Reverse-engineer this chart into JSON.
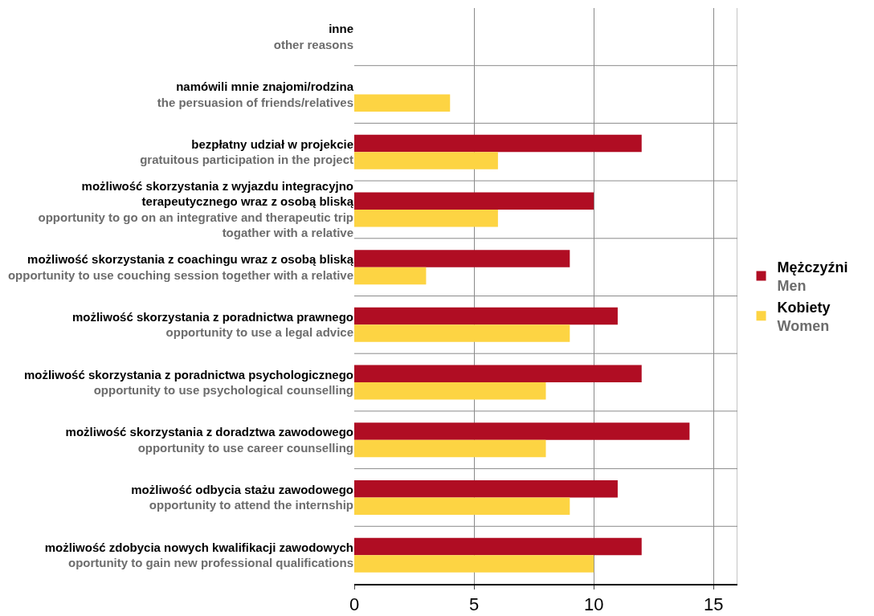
{
  "chart_data": {
    "type": "bar",
    "orientation": "horizontal",
    "categories": [
      "inne\nother reasons",
      "namówili mnie znajomi/rodzina\nthe persuasion of friends/relatives",
      "bezpłatny udział w projekcie\ngratuitous participation in the project",
      "możliwość skorzystania z wyjazdu integracyjno terapeutycznego wraz z osobą bliską\nopportunity to go on an integrative and therapeutic trip togather with a relative",
      "możliwość skorzystania z coachingu wraz z osobą bliską\nopportunity to use couching session together with a relative",
      "możliwość skorzystania z poradnictwa prawnego\nopportunity to use a legal advice",
      "możliwość skorzystania z poradnictwa psychologicznego\nopportunity to use psychological counselling",
      "możliwość skorzystania z doradztwa zawodowego\nopportunity to use career counselling",
      "możliwość odbycia stażu zawodowego\nopportunity to attend the internship",
      "możliwość zdobycia nowych kwalifikacji zawodowych\noportunity to gain new professional qualifications"
    ],
    "series": [
      {
        "name": "Mężczyźni\nMen",
        "color": "#b00d23",
        "values": [
          null,
          null,
          12,
          10,
          9,
          11,
          12,
          14,
          11,
          12
        ]
      },
      {
        "name": "Kobiety\nWomen",
        "color": "#fdd443",
        "values": [
          null,
          4,
          6,
          6,
          3,
          9,
          8,
          8,
          9,
          10
        ]
      }
    ],
    "xlim": [
      0,
      16
    ],
    "xticks": [
      0,
      5,
      10,
      15
    ],
    "grid": true,
    "legend": "right"
  }
}
